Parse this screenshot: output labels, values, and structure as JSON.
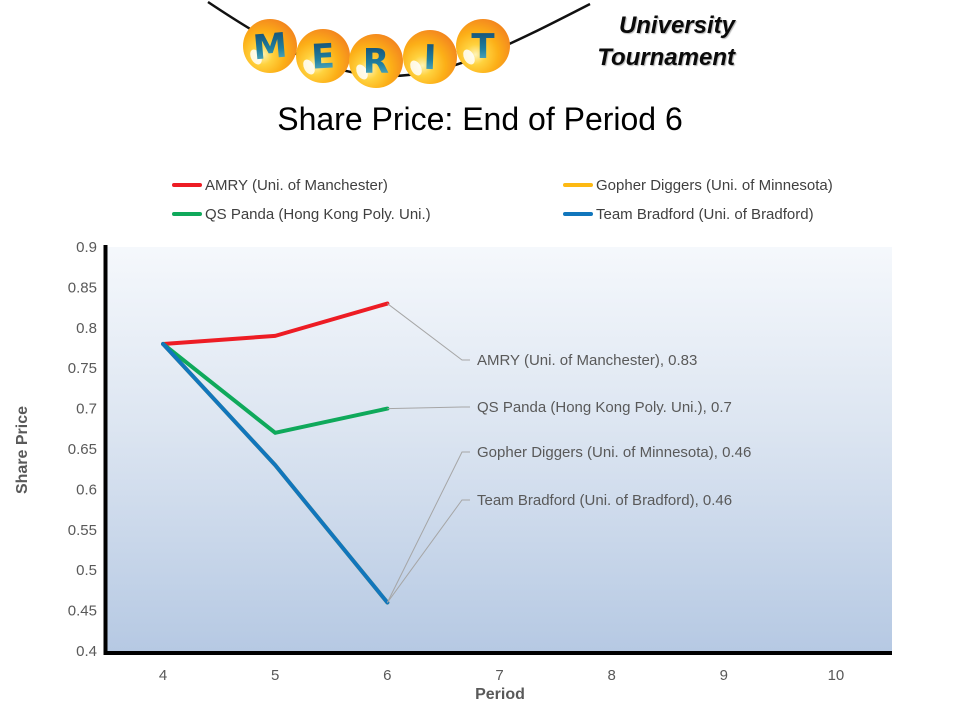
{
  "logo": {
    "letters": [
      "M",
      "E",
      "R",
      "I",
      "T"
    ],
    "subtitle": [
      "University",
      "Tournament"
    ],
    "ball_color": "#f9a11b",
    "letter_color": "#1f7fa0"
  },
  "title": "Share Price: End of Period 6",
  "colors": {
    "amry_red": "#ed1c24",
    "gopher_yellow": "#fdb913",
    "qspanda_green": "#0fa95b",
    "bradford_blue": "#1176bc",
    "leader_gray": "#a6a6a6",
    "axis_text": "#595959",
    "legend_text": "#404040",
    "plot_gradient_top": "#f5f8fc",
    "plot_gradient_bottom": "#b6c9e3"
  },
  "chart_data": {
    "type": "line",
    "title": "Share Price: End of Period 6",
    "xlabel": "Period",
    "ylabel": "Share Price",
    "x_categories": [
      4,
      5,
      6,
      7,
      8,
      9,
      10
    ],
    "ylim": [
      0.4,
      0.9
    ],
    "y_ticks": [
      "0.9",
      "0.85",
      "0.8",
      "0.75",
      "0.7",
      "0.65",
      "0.6",
      "0.55",
      "0.5",
      "0.45",
      "0.4"
    ],
    "grid": "off",
    "legend_position": "top-two-column",
    "series": [
      {
        "name": "AMRY (Uni. of Manchester)",
        "color": "#ed1c24",
        "x": [
          4,
          5,
          6
        ],
        "values": [
          0.78,
          0.79,
          0.83
        ],
        "data_label": "AMRY (Uni. of Manchester), 0.83"
      },
      {
        "name": "Gopher Diggers (Uni. of Minnesota)",
        "color": "#fdb913",
        "x": [
          4,
          5,
          6
        ],
        "values": [
          0.78,
          0.63,
          0.46
        ],
        "data_label": "Gopher Diggers (Uni. of Minnesota), 0.46",
        "note": "hidden behind Team Bradford line (identical values)"
      },
      {
        "name": "QS Panda (Hong Kong Poly. Uni.)",
        "color": "#0fa95b",
        "x": [
          4,
          5,
          6
        ],
        "values": [
          0.78,
          0.67,
          0.7
        ],
        "data_label": "QS Panda (Hong Kong Poly. Uni.), 0.7"
      },
      {
        "name": "Team Bradford (Uni. of Bradford)",
        "color": "#1176bc",
        "x": [
          4,
          5,
          6
        ],
        "values": [
          0.78,
          0.63,
          0.46
        ],
        "data_label": "Team Bradford (Uni. of Bradford), 0.46"
      }
    ]
  }
}
